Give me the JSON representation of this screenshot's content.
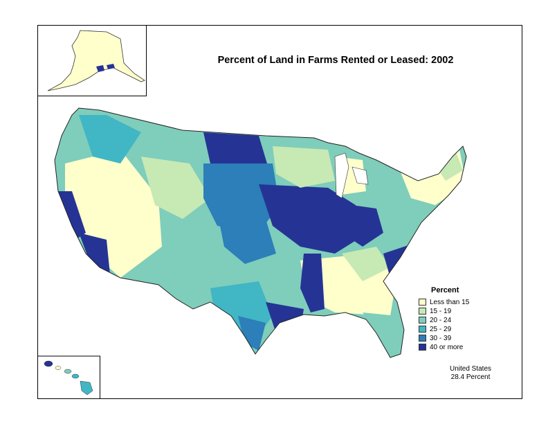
{
  "title": "Percent of Land in Farms Rented or Leased:  2002",
  "legend": {
    "title": "Percent",
    "items": [
      {
        "label": "Less than 15",
        "color": "#ffffcc"
      },
      {
        "label": "15 - 19",
        "color": "#c7e9b4"
      },
      {
        "label": "20 - 24",
        "color": "#7fcdbb"
      },
      {
        "label": "25 - 29",
        "color": "#41b6c4"
      },
      {
        "label": "30 - 39",
        "color": "#2c7fb8"
      },
      {
        "label": "40 or more",
        "color": "#253494"
      }
    ]
  },
  "summary": {
    "line1": "United States",
    "line2": "28.4 Percent"
  }
}
